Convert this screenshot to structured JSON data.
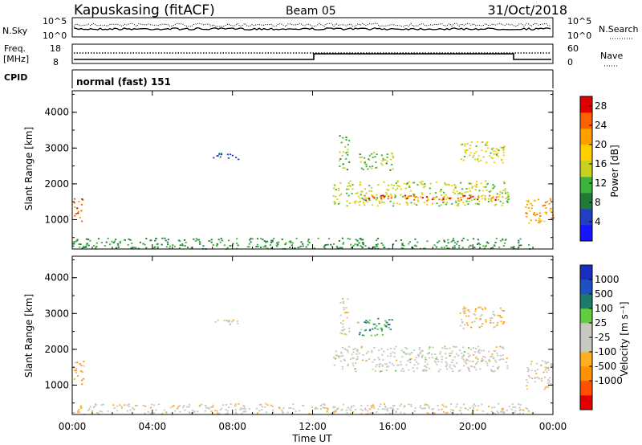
{
  "header": {
    "station": "Kapuskasing (fitACF)",
    "beam": "Beam 05",
    "date": "31/Oct/2018"
  },
  "noise_panel": {
    "left_label": "N.Sky",
    "right_label": "N.Search",
    "left_ticks": [
      "10^5",
      "10^0"
    ],
    "right_ticks": [
      "10^5",
      "10^0"
    ]
  },
  "freq_panel": {
    "left_label_1": "Freq.",
    "left_label_2": "[MHz]",
    "left_ticks": [
      "18",
      "8"
    ],
    "right_label": "Nave",
    "right_ticks": [
      "60",
      "0"
    ]
  },
  "cpid_panel": {
    "label": "CPID",
    "value": "normal (fast) 151"
  },
  "colors": {
    "power_scale": [
      "#1515ff",
      "#2040c0",
      "#1f7a3a",
      "#3cb43c",
      "#c8d020",
      "#ffd000",
      "#ffa000",
      "#ff6000",
      "#e00000"
    ],
    "velocity_scale": [
      "#e00000",
      "#ff5000",
      "#ff9000",
      "#ffb020",
      "#c8c8c0",
      "#c8c8c0",
      "#5fcf3f",
      "#1f7a6a",
      "#2050c0",
      "#1a2fc0"
    ]
  },
  "chart_data": [
    {
      "type": "heatmap",
      "title": "Power",
      "ylabel": "Slant Range [km]",
      "xlabel": "",
      "ylim": [
        180,
        4600
      ],
      "xlim": [
        0,
        24
      ],
      "yticks": [
        "4000",
        "3000",
        "2000",
        "1000"
      ],
      "xticks": [
        "00:00",
        "04:00",
        "08:00",
        "12:00",
        "16:00",
        "20:00",
        "00:00"
      ],
      "colorbar": {
        "label": "Power [dB]",
        "ticks": [
          "28",
          "24",
          "20",
          "16",
          "12",
          "8",
          "4"
        ],
        "range": [
          0,
          30
        ]
      },
      "regions": [
        {
          "t0": 0.05,
          "t1": 0.55,
          "r0": 950,
          "r1": 1600,
          "value": 24
        },
        {
          "t0": 0.0,
          "t1": 22.8,
          "r0": 200,
          "r1": 500,
          "value": 10
        },
        {
          "t0": 7.0,
          "t1": 8.4,
          "r0": 2700,
          "r1": 2900,
          "value": 7
        },
        {
          "t0": 13.0,
          "t1": 21.8,
          "r0": 1400,
          "r1": 2100,
          "value": 15
        },
        {
          "t0": 14.5,
          "t1": 21.5,
          "r0": 1550,
          "r1": 1700,
          "value": 26
        },
        {
          "t0": 13.3,
          "t1": 13.8,
          "r0": 2400,
          "r1": 3400,
          "value": 12
        },
        {
          "t0": 14.2,
          "t1": 16.0,
          "r0": 2400,
          "r1": 2900,
          "value": 13
        },
        {
          "t0": 19.3,
          "t1": 21.6,
          "r0": 2600,
          "r1": 3200,
          "value": 16
        },
        {
          "t0": 22.6,
          "t1": 24.0,
          "r0": 900,
          "r1": 1600,
          "value": 22
        }
      ]
    },
    {
      "type": "heatmap",
      "title": "Velocity",
      "ylabel": "Slant Range [km]",
      "xlabel": "Time UT",
      "ylim": [
        180,
        4600
      ],
      "xlim": [
        0,
        24
      ],
      "yticks": [
        "4000",
        "3000",
        "2000",
        "1000"
      ],
      "xticks": [
        "00:00",
        "04:00",
        "08:00",
        "12:00",
        "16:00",
        "20:00",
        "00:00"
      ],
      "colorbar": {
        "label": "Velocity [m s⁻¹]",
        "ticks": [
          "1000",
          "500",
          "100",
          "25",
          "-25",
          "-100",
          "-500",
          "-1000"
        ],
        "range": [
          -1250,
          1250
        ]
      },
      "regions": [
        {
          "t0": 0.05,
          "t1": 0.55,
          "r0": 1000,
          "r1": 1700,
          "value": -400
        },
        {
          "t0": 0.0,
          "t1": 22.8,
          "r0": 200,
          "r1": 500,
          "value": -80
        },
        {
          "t0": 7.0,
          "t1": 8.4,
          "r0": 2700,
          "r1": 2900,
          "value": 0
        },
        {
          "t0": 13.0,
          "t1": 21.8,
          "r0": 1400,
          "r1": 2100,
          "value": 0
        },
        {
          "t0": 13.3,
          "t1": 13.8,
          "r0": 2400,
          "r1": 3500,
          "value": -200
        },
        {
          "t0": 14.2,
          "t1": 16.0,
          "r0": 2400,
          "r1": 2900,
          "value": 500
        },
        {
          "t0": 19.3,
          "t1": 21.6,
          "r0": 2600,
          "r1": 3200,
          "value": -300
        },
        {
          "t0": 22.6,
          "t1": 24.0,
          "r0": 900,
          "r1": 1700,
          "value": -150
        }
      ]
    }
  ]
}
